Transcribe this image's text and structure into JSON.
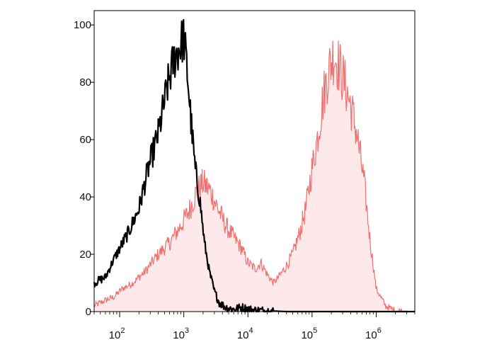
{
  "chart_data": {
    "type": "area",
    "title": "",
    "xlabel": "",
    "ylabel": "",
    "x_scale": "log10",
    "xlim": [
      40,
      4000000
    ],
    "ylim": [
      0,
      105
    ],
    "grid": false,
    "legend": "none",
    "y_ticks": [
      "0",
      "20",
      "40",
      "60",
      "80",
      "100"
    ],
    "y_tick_values": [
      0,
      20,
      40,
      60,
      80,
      100
    ],
    "x_ticks": [
      {
        "base": "10",
        "exp": "2",
        "value": 100
      },
      {
        "base": "10",
        "exp": "3",
        "value": 1000
      },
      {
        "base": "10",
        "exp": "4",
        "value": 10000
      },
      {
        "base": "10",
        "exp": "5",
        "value": 100000
      },
      {
        "base": "10",
        "exp": "6",
        "value": 1000000
      }
    ],
    "series": [
      {
        "style": "line",
        "color": "#000000",
        "x": [
          40,
          60,
          80,
          100,
          140,
          200,
          280,
          400,
          550,
          700,
          850,
          1000,
          1150,
          1300,
          1500,
          1800,
          2100,
          2500,
          3000,
          3600,
          4500,
          6000,
          8000,
          12000,
          20000,
          40000,
          4000000
        ],
        "y": [
          10,
          12,
          18,
          22,
          28,
          36,
          50,
          62,
          78,
          88,
          92,
          96,
          82,
          66,
          50,
          38,
          24,
          14,
          7,
          3,
          1.5,
          0.8,
          1.5,
          0.5,
          0.3,
          0,
          0
        ]
      },
      {
        "style": "filled",
        "color": "#f07070",
        "fill": "#fde8ea",
        "x": [
          40,
          60,
          80,
          110,
          160,
          250,
          400,
          600,
          900,
          1200,
          1600,
          2000,
          2600,
          3400,
          4500,
          6000,
          8000,
          10000,
          13000,
          16000,
          20000,
          25000,
          30000,
          40000,
          50000,
          65000,
          80000,
          100000,
          120000,
          150000,
          180000,
          220000,
          260000,
          320000,
          400000,
          500000,
          650000,
          800000,
          1000000,
          1400000,
          2000000,
          4000000
        ],
        "y": [
          2,
          4,
          5,
          8,
          10,
          14,
          20,
          24,
          30,
          35,
          42,
          45,
          42,
          36,
          30,
          26,
          22,
          17,
          15,
          17,
          13,
          10,
          12,
          16,
          20,
          28,
          36,
          50,
          60,
          75,
          84,
          90,
          86,
          80,
          72,
          62,
          45,
          25,
          8,
          2,
          0.3,
          0
        ]
      }
    ]
  }
}
